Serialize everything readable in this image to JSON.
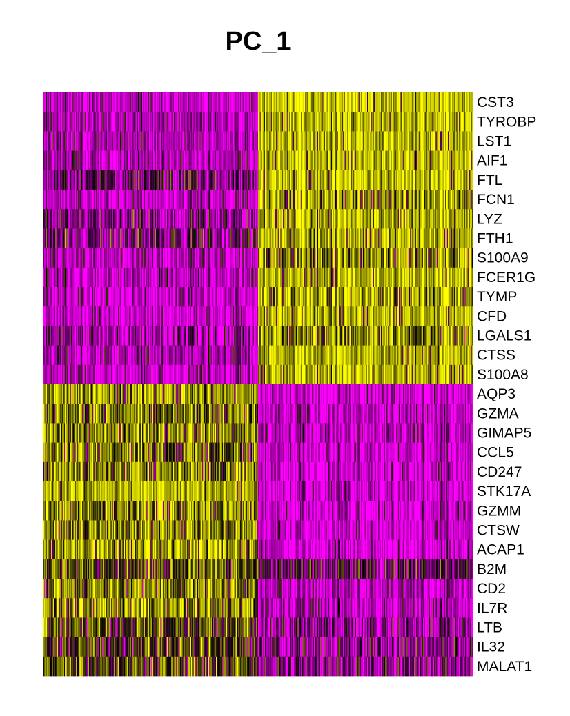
{
  "chart_data": {
    "type": "heatmap",
    "title": "PC_1",
    "rows": [
      "CST3",
      "TYROBP",
      "LST1",
      "AIF1",
      "FTL",
      "FCN1",
      "LYZ",
      "FTH1",
      "S100A9",
      "FCER1G",
      "TYMP",
      "CFD",
      "LGALS1",
      "CTSS",
      "S100A8",
      "AQP3",
      "GZMA",
      "GIMAP5",
      "CCL5",
      "CD247",
      "STK17A",
      "GZMM",
      "CTSW",
      "ACAP1",
      "B2M",
      "CD2",
      "IL7R",
      "LTB",
      "IL32",
      "MALAT1"
    ],
    "column_groups": [
      {
        "cells": 250,
        "mean_expression": [
          -0.8,
          -0.75,
          -0.7,
          -0.75,
          -0.45,
          -0.8,
          -0.55,
          -0.45,
          -0.8,
          -0.75,
          -0.8,
          -0.85,
          -0.65,
          -0.7,
          -0.8,
          0.6,
          0.5,
          0.55,
          0.45,
          0.55,
          0.7,
          0.55,
          0.5,
          0.65,
          0.3,
          0.5,
          0.55,
          0.2,
          0.15,
          0.3
        ]
      },
      {
        "cells": 250,
        "mean_expression": [
          0.8,
          0.75,
          0.75,
          0.75,
          0.75,
          0.6,
          0.7,
          0.7,
          0.55,
          0.7,
          0.65,
          0.75,
          0.55,
          0.7,
          0.75,
          -0.9,
          -0.85,
          -0.8,
          -0.85,
          -0.85,
          -0.85,
          -0.85,
          -0.85,
          -0.85,
          -0.35,
          -0.8,
          -0.8,
          -0.6,
          -0.6,
          -0.55
        ]
      }
    ],
    "color_scale": {
      "low": "#ff00ff",
      "mid": "#000000",
      "high": "#ffff00"
    },
    "legend": "none",
    "grid": false
  }
}
